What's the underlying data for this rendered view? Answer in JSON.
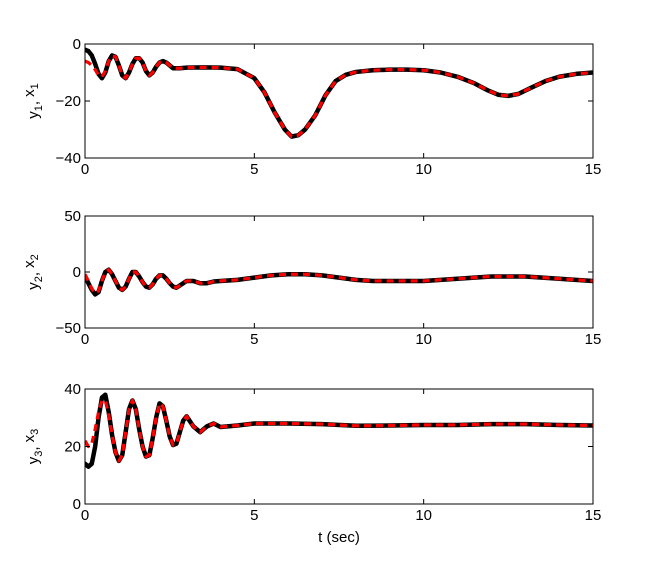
{
  "chart_data": [
    {
      "type": "line",
      "ylabel_main": "y",
      "ylabel_main_sub": "1",
      "ylabel_sep": ", ",
      "ylabel_second": "x",
      "ylabel_second_sub": "1",
      "xlim": [
        0,
        15
      ],
      "ylim": [
        -40,
        0
      ],
      "xticks": [
        0,
        5,
        10,
        15
      ],
      "yticks": [
        -40,
        -20,
        0
      ],
      "xtick_labels": [
        "0",
        "5",
        "10",
        "15"
      ],
      "ytick_labels": [
        "−40",
        "−20",
        "0"
      ],
      "grid": false,
      "series": [
        {
          "color": "#000000",
          "style": "solid",
          "x": [
            0,
            0.1,
            0.2,
            0.3,
            0.4,
            0.5,
            0.6,
            0.7,
            0.8,
            0.9,
            1.0,
            1.1,
            1.2,
            1.3,
            1.4,
            1.5,
            1.6,
            1.7,
            1.8,
            1.9,
            2.0,
            2.1,
            2.2,
            2.3,
            2.4,
            2.5,
            2.6,
            2.8,
            3.0,
            3.5,
            4.0,
            4.5,
            5.0,
            5.3,
            5.6,
            5.9,
            6.1,
            6.3,
            6.5,
            6.8,
            7.1,
            7.4,
            7.7,
            8.0,
            8.5,
            9.0,
            9.5,
            10.0,
            10.5,
            11.0,
            11.5,
            11.9,
            12.2,
            12.5,
            12.8,
            13.2,
            13.6,
            14.0,
            14.5,
            15.0
          ],
          "y": [
            -2,
            -2.5,
            -4,
            -7,
            -10.5,
            -12,
            -10,
            -6,
            -4,
            -4.5,
            -7.5,
            -11,
            -12,
            -10,
            -7,
            -5,
            -5,
            -6.5,
            -9.5,
            -11,
            -10,
            -8,
            -6.5,
            -6,
            -6.5,
            -7.5,
            -8.5,
            -8.5,
            -8.3,
            -8.2,
            -8.3,
            -8.8,
            -12,
            -17,
            -24,
            -30,
            -32.5,
            -32,
            -30,
            -25,
            -18,
            -13,
            -10.8,
            -9.8,
            -9.2,
            -9,
            -9,
            -9.2,
            -10,
            -11.5,
            -13.8,
            -16.3,
            -17.8,
            -18.2,
            -17.5,
            -15.2,
            -13,
            -11.5,
            -10.5,
            -10
          ]
        },
        {
          "color": "#ff0000",
          "style": "dashed",
          "x": [
            0,
            0.1,
            0.2,
            0.3,
            0.4,
            0.5,
            0.6,
            0.7,
            0.8,
            0.9,
            1.0,
            1.1,
            1.2,
            1.3,
            1.4,
            1.5,
            1.6,
            1.7,
            1.8,
            1.9,
            2.0,
            2.1,
            2.2,
            2.3,
            2.4,
            2.5,
            2.6,
            2.8,
            3.0,
            3.5,
            4.0,
            4.5,
            5.0,
            5.3,
            5.6,
            5.9,
            6.1,
            6.3,
            6.5,
            6.8,
            7.1,
            7.4,
            7.7,
            8.0,
            8.5,
            9.0,
            9.5,
            10.0,
            10.5,
            11.0,
            11.5,
            11.9,
            12.2,
            12.5,
            12.8,
            13.2,
            13.6,
            14.0,
            14.5,
            15.0
          ],
          "y": [
            -6,
            -6.5,
            -7.5,
            -9,
            -11,
            -11.5,
            -9.5,
            -6,
            -4.2,
            -4.5,
            -7.5,
            -11,
            -12,
            -10,
            -7,
            -5,
            -5,
            -6.5,
            -9.5,
            -11,
            -10,
            -8,
            -6.5,
            -6,
            -6.5,
            -7.5,
            -8.5,
            -8.5,
            -8.3,
            -8.2,
            -8.3,
            -8.8,
            -12,
            -17,
            -24,
            -30,
            -32.5,
            -32,
            -30,
            -25,
            -18,
            -13,
            -10.8,
            -9.8,
            -9.2,
            -9,
            -9,
            -9.2,
            -10,
            -11.5,
            -13.8,
            -16.3,
            -17.8,
            -18.2,
            -17.5,
            -15.2,
            -13,
            -11.5,
            -10.5,
            -10
          ]
        }
      ]
    },
    {
      "type": "line",
      "ylabel_main": "y",
      "ylabel_main_sub": "2",
      "ylabel_sep": ", ",
      "ylabel_second": "x",
      "ylabel_second_sub": "2",
      "xlim": [
        0,
        15
      ],
      "ylim": [
        -50,
        50
      ],
      "xticks": [
        0,
        5,
        10,
        15
      ],
      "yticks": [
        -50,
        0,
        50
      ],
      "xtick_labels": [
        "0",
        "5",
        "10",
        "15"
      ],
      "ytick_labels": [
        "−50",
        "0",
        "50"
      ],
      "grid": false,
      "series": [
        {
          "color": "#000000",
          "style": "solid",
          "x": [
            0,
            0.1,
            0.2,
            0.3,
            0.4,
            0.5,
            0.6,
            0.7,
            0.8,
            0.9,
            1.0,
            1.1,
            1.2,
            1.3,
            1.4,
            1.5,
            1.6,
            1.7,
            1.8,
            1.9,
            2.0,
            2.1,
            2.2,
            2.3,
            2.4,
            2.5,
            2.6,
            2.7,
            2.8,
            2.9,
            3.0,
            3.2,
            3.4,
            3.6,
            3.8,
            4.0,
            4.5,
            5.0,
            5.5,
            6.0,
            6.5,
            7.0,
            7.5,
            8.0,
            8.5,
            9.0,
            9.5,
            10.0,
            10.5,
            11.0,
            11.5,
            12.0,
            12.5,
            13.0,
            13.5,
            14.0,
            14.5,
            15.0
          ],
          "y": [
            -4,
            -10,
            -16,
            -20,
            -18,
            -8,
            0,
            2,
            -2,
            -8,
            -14,
            -16,
            -13,
            -6,
            0,
            0,
            -4,
            -9,
            -13,
            -14,
            -11,
            -6,
            -3,
            -3,
            -6,
            -10,
            -13,
            -14,
            -12,
            -10,
            -8,
            -8,
            -10,
            -10,
            -8.5,
            -8,
            -7,
            -5,
            -3,
            -2,
            -2,
            -3,
            -5,
            -7,
            -8,
            -8,
            -8,
            -8,
            -7,
            -6,
            -5,
            -4,
            -4,
            -4,
            -5,
            -6,
            -7,
            -8
          ]
        },
        {
          "color": "#ff0000",
          "style": "dashed",
          "x": [
            0,
            0.1,
            0.2,
            0.3,
            0.4,
            0.5,
            0.6,
            0.7,
            0.8,
            0.9,
            1.0,
            1.1,
            1.2,
            1.3,
            1.4,
            1.5,
            1.6,
            1.7,
            1.8,
            1.9,
            2.0,
            2.1,
            2.2,
            2.3,
            2.4,
            2.5,
            2.6,
            2.7,
            2.8,
            2.9,
            3.0,
            3.2,
            3.4,
            3.6,
            3.8,
            4.0,
            4.5,
            5.0,
            5.5,
            6.0,
            6.5,
            7.0,
            7.5,
            8.0,
            8.5,
            9.0,
            9.5,
            10.0,
            10.5,
            11.0,
            11.5,
            12.0,
            12.5,
            13.0,
            13.5,
            14.0,
            14.5,
            15.0
          ],
          "y": [
            -2,
            -8,
            -15,
            -19,
            -17,
            -8,
            0,
            2,
            -2,
            -8,
            -14,
            -16,
            -13,
            -6,
            0,
            0,
            -4,
            -9,
            -13,
            -14,
            -11,
            -6,
            -3,
            -3,
            -6,
            -10,
            -13,
            -14,
            -12,
            -10,
            -8,
            -8,
            -10,
            -10,
            -8.5,
            -8,
            -7,
            -5,
            -3,
            -2,
            -2,
            -3,
            -5,
            -7,
            -8,
            -8,
            -8,
            -8,
            -7,
            -6,
            -5,
            -4,
            -4,
            -4,
            -5,
            -6,
            -7,
            -8
          ]
        }
      ]
    },
    {
      "type": "line",
      "xlabel": "t (sec)",
      "ylabel_main": "y",
      "ylabel_main_sub": "3",
      "ylabel_sep": ", ",
      "ylabel_second": "x",
      "ylabel_second_sub": "3",
      "xlim": [
        0,
        15
      ],
      "ylim": [
        0,
        40
      ],
      "xticks": [
        0,
        5,
        10,
        15
      ],
      "yticks": [
        0,
        20,
        40
      ],
      "xtick_labels": [
        "0",
        "5",
        "10",
        "15"
      ],
      "ytick_labels": [
        "0",
        "20",
        "40"
      ],
      "grid": false,
      "series": [
        {
          "color": "#000000",
          "style": "solid",
          "x": [
            0,
            0.1,
            0.2,
            0.3,
            0.4,
            0.5,
            0.6,
            0.7,
            0.8,
            0.9,
            1.0,
            1.1,
            1.2,
            1.3,
            1.4,
            1.5,
            1.6,
            1.7,
            1.8,
            1.9,
            2.0,
            2.1,
            2.2,
            2.3,
            2.4,
            2.5,
            2.6,
            2.7,
            2.8,
            2.9,
            3.0,
            3.2,
            3.4,
            3.6,
            3.8,
            4.0,
            4.5,
            5.0,
            6.0,
            7.0,
            8.0,
            9.0,
            10.0,
            11.0,
            12.0,
            13.0,
            14.0,
            15.0
          ],
          "y": [
            14,
            13,
            14,
            20,
            30,
            37,
            38,
            32,
            24,
            18,
            15,
            17,
            25,
            33,
            36,
            33,
            26,
            20,
            16.5,
            17,
            23,
            30,
            35,
            34,
            29,
            23.5,
            20.5,
            21,
            25,
            29,
            30.5,
            27,
            25,
            27,
            28,
            26.8,
            27.3,
            28,
            28,
            27.8,
            27.2,
            27.3,
            27.5,
            27.5,
            27.8,
            27.8,
            27.5,
            27.3
          ]
        },
        {
          "color": "#ff0000",
          "style": "dashed",
          "x": [
            0,
            0.1,
            0.2,
            0.3,
            0.4,
            0.5,
            0.6,
            0.7,
            0.8,
            0.9,
            1.0,
            1.1,
            1.2,
            1.3,
            1.4,
            1.5,
            1.6,
            1.7,
            1.8,
            1.9,
            2.0,
            2.1,
            2.2,
            2.3,
            2.4,
            2.5,
            2.6,
            2.7,
            2.8,
            2.9,
            3.0,
            3.2,
            3.4,
            3.6,
            3.8,
            4.0,
            4.5,
            5.0,
            6.0,
            7.0,
            8.0,
            9.0,
            10.0,
            11.0,
            12.0,
            13.0,
            14.0,
            15.0
          ],
          "y": [
            22,
            20,
            21,
            26,
            32,
            36,
            36,
            31,
            24,
            18,
            15,
            17,
            25,
            33,
            36,
            33,
            26,
            20,
            16.5,
            17,
            23,
            30,
            35,
            34,
            29,
            23.5,
            20.5,
            21,
            25,
            29,
            30.5,
            27,
            25,
            27,
            28,
            26.8,
            27.3,
            28,
            28,
            27.8,
            27.2,
            27.3,
            27.5,
            27.5,
            27.8,
            27.8,
            27.5,
            27.3
          ]
        }
      ]
    }
  ]
}
